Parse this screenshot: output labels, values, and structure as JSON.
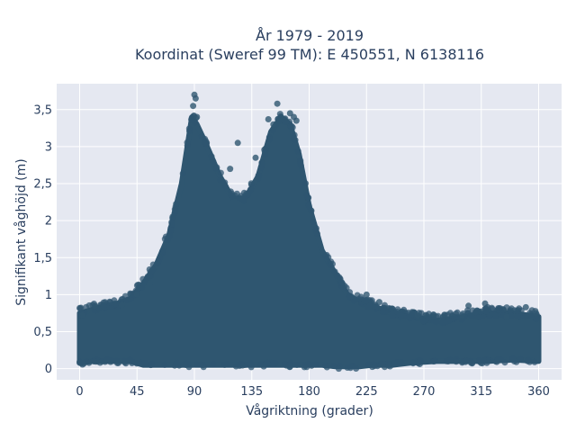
{
  "chart_data": {
    "type": "scatter",
    "title_line1": "År 1979 - 2019",
    "title_line2": "Koordinat (Sweref 99 TM): E 450551, N 6138116",
    "xlabel": "Vågriktning (grader)",
    "ylabel": "Signifikant våghöjd (m)",
    "xlim": [
      -18,
      378
    ],
    "ylim": [
      -0.15,
      3.85
    ],
    "x_ticks": [
      0,
      45,
      90,
      135,
      180,
      225,
      270,
      315,
      360
    ],
    "x_tick_labels": [
      "0",
      "45",
      "90",
      "135",
      "180",
      "225",
      "270",
      "315",
      "360"
    ],
    "y_ticks": [
      0,
      0.5,
      1,
      1.5,
      2,
      2.5,
      3,
      3.5
    ],
    "y_tick_labels": [
      "0",
      "0,5",
      "1",
      "1,5",
      "2",
      "2,5",
      "3",
      "3,5"
    ],
    "grid": true,
    "marker_color": "#2f5670",
    "plot_bg": "#e5e8f1",
    "envelope": {
      "x": [
        0,
        10,
        20,
        30,
        40,
        50,
        60,
        70,
        80,
        88,
        92,
        100,
        110,
        120,
        130,
        140,
        150,
        158,
        165,
        172,
        180,
        190,
        200,
        210,
        220,
        230,
        245,
        260,
        280,
        300,
        320,
        340,
        360
      ],
      "y_max": [
        0.75,
        0.8,
        0.85,
        0.88,
        0.95,
        1.15,
        1.4,
        1.8,
        2.5,
        3.4,
        3.3,
        3.0,
        2.6,
        2.3,
        2.3,
        2.6,
        3.2,
        3.4,
        3.3,
        2.9,
        2.2,
        1.6,
        1.3,
        1.0,
        0.9,
        0.85,
        0.75,
        0.7,
        0.65,
        0.7,
        0.75,
        0.75,
        0.7
      ],
      "y_min": [
        0.08,
        0.1,
        0.1,
        0.1,
        0.1,
        0.05,
        0.05,
        0.05,
        0.05,
        0.05,
        0.05,
        0.05,
        0.05,
        0.05,
        0.05,
        0.05,
        0.05,
        0.05,
        0.05,
        0.05,
        0.05,
        0.05,
        0.03,
        0.03,
        0.03,
        0.05,
        0.05,
        0.08,
        0.1,
        0.1,
        0.1,
        0.12,
        0.1
      ]
    },
    "points": [
      {
        "x": 90,
        "y": 3.7
      },
      {
        "x": 91,
        "y": 3.65
      },
      {
        "x": 89,
        "y": 3.55
      },
      {
        "x": 92,
        "y": 3.4
      },
      {
        "x": 155,
        "y": 3.58
      },
      {
        "x": 148,
        "y": 3.37
      },
      {
        "x": 152,
        "y": 3.3
      },
      {
        "x": 165,
        "y": 3.45
      },
      {
        "x": 168,
        "y": 3.4
      },
      {
        "x": 170,
        "y": 3.35
      },
      {
        "x": 124,
        "y": 3.05
      },
      {
        "x": 118,
        "y": 2.7
      },
      {
        "x": 138,
        "y": 2.85
      },
      {
        "x": 225,
        "y": 1.0
      },
      {
        "x": 235,
        "y": 0.9
      },
      {
        "x": 265,
        "y": 0.72
      },
      {
        "x": 300,
        "y": 0.72
      },
      {
        "x": 305,
        "y": 0.85
      },
      {
        "x": 318,
        "y": 0.88
      },
      {
        "x": 320,
        "y": 0.83
      },
      {
        "x": 335,
        "y": 0.7
      },
      {
        "x": 350,
        "y": 0.83
      },
      {
        "x": 358,
        "y": 0.75
      },
      {
        "x": 2,
        "y": 0.72
      },
      {
        "x": 12,
        "y": 0.85
      },
      {
        "x": 33,
        "y": 0.86
      },
      {
        "x": 45,
        "y": 1.0
      },
      {
        "x": 55,
        "y": 1.15
      }
    ]
  }
}
